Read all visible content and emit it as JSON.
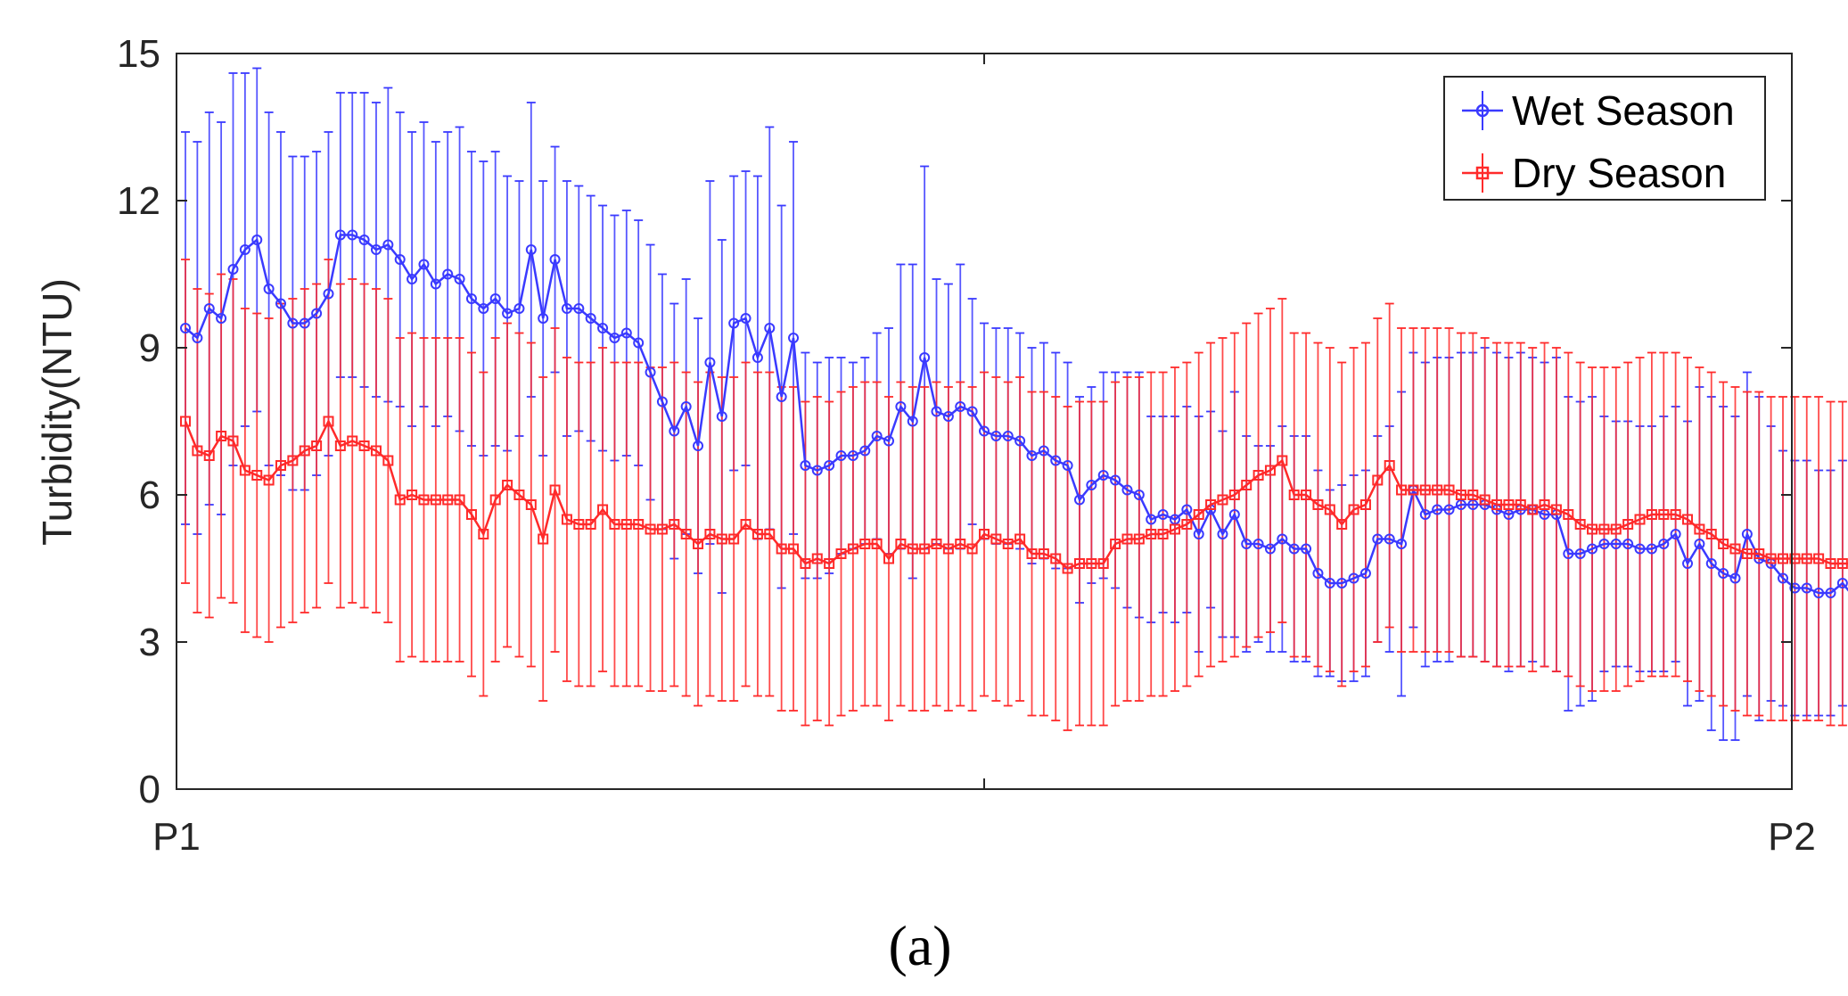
{
  "chart_data": {
    "type": "line",
    "ylabel": "Turbidity(NTU)",
    "xlabel": "",
    "ylim": [
      0,
      15
    ],
    "yticks": [
      "0",
      "3",
      "6",
      "9",
      "12",
      "15"
    ],
    "xticks": [
      "P1",
      "P2"
    ],
    "grid": false,
    "legend_position": "top-right",
    "caption": "(a)",
    "n_points": 135,
    "series": [
      {
        "name": "Wet Season",
        "color": "#3a3aff",
        "marker": "circle",
        "values": [
          9.4,
          9.2,
          9.8,
          9.6,
          10.6,
          11.0,
          11.2,
          10.2,
          9.9,
          9.5,
          9.5,
          9.7,
          10.1,
          11.3,
          11.3,
          11.2,
          11.0,
          11.1,
          10.8,
          10.4,
          10.7,
          10.3,
          10.5,
          10.4,
          10.0,
          9.8,
          10.0,
          9.7,
          9.8,
          11.0,
          9.6,
          10.8,
          9.8,
          9.8,
          9.6,
          9.4,
          9.2,
          9.3,
          9.1,
          8.5,
          7.9,
          7.3,
          7.8,
          7.0,
          8.7,
          7.6,
          9.5,
          9.6,
          8.8,
          9.4,
          8.0,
          9.2,
          6.6,
          6.5,
          6.6,
          6.8,
          6.8,
          6.9,
          7.2,
          7.1,
          7.8,
          7.5,
          8.8,
          7.7,
          7.6,
          7.8,
          7.7,
          7.3,
          7.2,
          7.2,
          7.1,
          6.8,
          6.9,
          6.7,
          6.6,
          5.9,
          6.2,
          6.4,
          6.3,
          6.1,
          6.0,
          5.5,
          5.6,
          5.5,
          5.7,
          5.2,
          5.7,
          5.2,
          5.6,
          5.0,
          5.0,
          4.9,
          5.1,
          4.9,
          4.9,
          4.4,
          4.2,
          4.2,
          4.3,
          4.4,
          5.1,
          5.1,
          5.0,
          6.1,
          5.6,
          5.7,
          5.7,
          5.8,
          5.8,
          5.8,
          5.7,
          5.6,
          5.7,
          5.7,
          5.6,
          5.6,
          4.8,
          4.8,
          4.9,
          5.0,
          5.0,
          5.0,
          4.9,
          4.9,
          5.0,
          5.2,
          4.6,
          5.0,
          4.6,
          4.4,
          4.3,
          5.2,
          4.7,
          4.6,
          4.3,
          4.1,
          4.1,
          4.0,
          4.0,
          4.2,
          3.9
        ],
        "errors": [
          4.0,
          4.0,
          4.0,
          4.0,
          4.0,
          3.6,
          3.5,
          3.6,
          3.5,
          3.4,
          3.4,
          3.3,
          3.3,
          2.9,
          2.9,
          3.0,
          3.0,
          3.2,
          3.0,
          3.0,
          2.9,
          2.9,
          2.9,
          3.1,
          3.0,
          3.0,
          3.0,
          2.8,
          2.6,
          3.0,
          2.8,
          2.3,
          2.6,
          2.5,
          2.5,
          2.5,
          2.5,
          2.5,
          2.5,
          2.6,
          2.6,
          2.6,
          2.6,
          2.6,
          3.7,
          3.6,
          3.0,
          3.0,
          3.7,
          4.1,
          3.9,
          4.0,
          2.3,
          2.2,
          2.2,
          2.0,
          1.9,
          1.9,
          2.1,
          2.3,
          2.9,
          3.2,
          3.9,
          2.7,
          2.7,
          2.9,
          2.3,
          2.2,
          2.2,
          2.2,
          2.2,
          2.2,
          2.2,
          2.2,
          2.1,
          2.1,
          2.0,
          2.1,
          2.2,
          2.4,
          2.5,
          2.1,
          2.0,
          2.1,
          2.1,
          2.4,
          2.0,
          2.1,
          2.5,
          2.2,
          2.0,
          2.1,
          2.3,
          2.3,
          2.3,
          2.1,
          1.9,
          2.0,
          2.1,
          2.1,
          2.1,
          2.3,
          3.1,
          2.8,
          3.1,
          3.1,
          3.1,
          3.1,
          3.1,
          3.2,
          3.2,
          3.2,
          3.2,
          3.1,
          3.1,
          3.2,
          3.2,
          3.1,
          3.1,
          2.6,
          2.5,
          2.5,
          2.5,
          2.5,
          2.6,
          2.6,
          2.9,
          3.2,
          3.4,
          3.4,
          3.3,
          3.3,
          3.3,
          2.8,
          2.6,
          2.6,
          2.6,
          2.5,
          2.5,
          2.5,
          2.3
        ]
      },
      {
        "name": "Dry Season",
        "color": "#ff2a2a",
        "marker": "square",
        "values": [
          7.5,
          6.9,
          6.8,
          7.2,
          7.1,
          6.5,
          6.4,
          6.3,
          6.6,
          6.7,
          6.9,
          7.0,
          7.5,
          7.0,
          7.1,
          7.0,
          6.9,
          6.7,
          5.9,
          6.0,
          5.9,
          5.9,
          5.9,
          5.9,
          5.6,
          5.2,
          5.9,
          6.2,
          6.0,
          5.8,
          5.1,
          6.1,
          5.5,
          5.4,
          5.4,
          5.7,
          5.4,
          5.4,
          5.4,
          5.3,
          5.3,
          5.4,
          5.2,
          5.0,
          5.2,
          5.1,
          5.1,
          5.4,
          5.2,
          5.2,
          4.9,
          4.9,
          4.6,
          4.7,
          4.6,
          4.8,
          4.9,
          5.0,
          5.0,
          4.7,
          5.0,
          4.9,
          4.9,
          5.0,
          4.9,
          5.0,
          4.9,
          5.2,
          5.1,
          5.0,
          5.1,
          4.8,
          4.8,
          4.7,
          4.5,
          4.6,
          4.6,
          4.6,
          5.0,
          5.1,
          5.1,
          5.2,
          5.2,
          5.3,
          5.4,
          5.6,
          5.8,
          5.9,
          6.0,
          6.2,
          6.4,
          6.5,
          6.7,
          6.0,
          6.0,
          5.8,
          5.7,
          5.4,
          5.7,
          5.8,
          6.3,
          6.6,
          6.1,
          6.1,
          6.1,
          6.1,
          6.1,
          6.0,
          6.0,
          5.9,
          5.8,
          5.8,
          5.8,
          5.7,
          5.8,
          5.7,
          5.6,
          5.4,
          5.3,
          5.3,
          5.3,
          5.4,
          5.5,
          5.6,
          5.6,
          5.6,
          5.5,
          5.3,
          5.2,
          5.0,
          4.9,
          4.8,
          4.8,
          4.7,
          4.7,
          4.7,
          4.7,
          4.7,
          4.6,
          4.6,
          4.6
        ]
      }
    ]
  }
}
